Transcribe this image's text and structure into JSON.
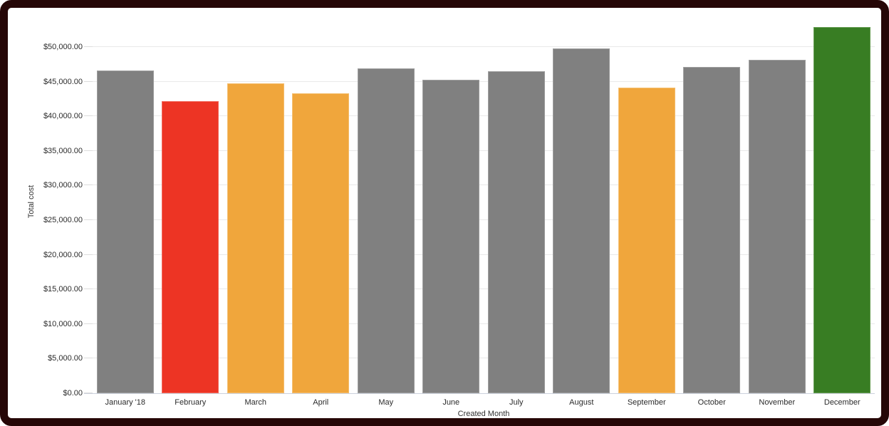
{
  "page": {
    "border_color": "#260707",
    "background_color": "#ffffff"
  },
  "chart_data": {
    "type": "bar",
    "title": "",
    "xlabel": "Created Month",
    "ylabel": "Total cost",
    "categories": [
      "January '18",
      "February",
      "March",
      "April",
      "May",
      "June",
      "July",
      "August",
      "September",
      "October",
      "November",
      "December"
    ],
    "values": [
      46600,
      42200,
      44800,
      43300,
      46900,
      45300,
      46500,
      49800,
      44100,
      47100,
      48200,
      52900
    ],
    "bar_fill_colors": [
      "#808080",
      "#ED3424",
      "#F0A63C",
      "#F0A63C",
      "#808080",
      "#808080",
      "#808080",
      "#808080",
      "#F0A63C",
      "#808080",
      "#808080",
      "#387D23"
    ],
    "bar_stroke_colors": [
      "#9e9e9e",
      "#F1685B",
      "#F4BE6F",
      "#F4BE6F",
      "#9e9e9e",
      "#9e9e9e",
      "#9e9e9e",
      "#9e9e9e",
      "#F4BE6F",
      "#9e9e9e",
      "#9e9e9e",
      "#639A4F"
    ],
    "color_legend": {
      "default_gray": "#808080",
      "alert_red": "#ED3424",
      "warning_orange": "#F0A63C",
      "good_green": "#387D23"
    },
    "ylim": [
      0,
      53000
    ],
    "yticks": [
      {
        "value": 0,
        "label": "$0.00"
      },
      {
        "value": 5000,
        "label": "$5,000.00"
      },
      {
        "value": 10000,
        "label": "$10,000.00"
      },
      {
        "value": 15000,
        "label": "$15,000.00"
      },
      {
        "value": 20000,
        "label": "$20,000.00"
      },
      {
        "value": 25000,
        "label": "$25,000.00"
      },
      {
        "value": 30000,
        "label": "$30,000.00"
      },
      {
        "value": 35000,
        "label": "$35,000.00"
      },
      {
        "value": 40000,
        "label": "$40,000.00"
      },
      {
        "value": 45000,
        "label": "$45,000.00"
      },
      {
        "value": 50000,
        "label": "$50,000.00"
      }
    ],
    "grid": "horizontal",
    "legend": "none"
  }
}
